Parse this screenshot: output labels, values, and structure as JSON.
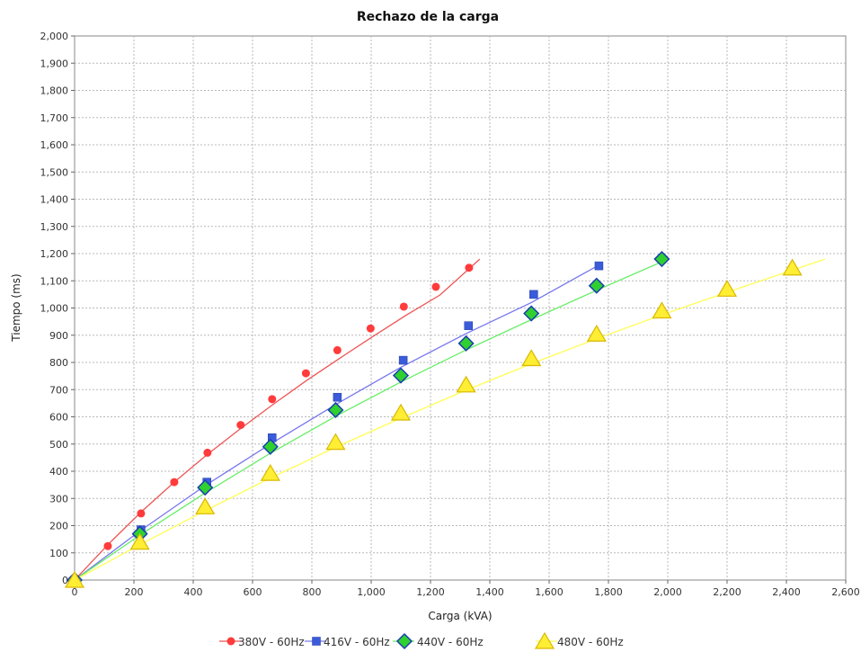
{
  "chart_data": {
    "type": "scatter",
    "title": "Rechazo de la carga",
    "xlabel": "Carga (kVA)",
    "ylabel": "Tiempo (ms)",
    "xlim": [
      0,
      2600
    ],
    "ylim": [
      0,
      2000
    ],
    "xticks": [
      0,
      200,
      400,
      600,
      800,
      1000,
      1200,
      1400,
      1600,
      1800,
      2000,
      2200,
      2400,
      2600
    ],
    "xtick_labels": [
      "0",
      "200",
      "400",
      "600",
      "800",
      "1,000",
      "1,200",
      "1,400",
      "1,600",
      "1,800",
      "2,000",
      "2,200",
      "2,400",
      "2,600"
    ],
    "yticks": [
      0,
      100,
      200,
      300,
      400,
      500,
      600,
      700,
      800,
      900,
      1000,
      1100,
      1200,
      1300,
      1400,
      1500,
      1600,
      1700,
      1800,
      1900,
      2000
    ],
    "ytick_labels": [
      "0",
      "100",
      "200",
      "300",
      "400",
      "500",
      "600",
      "700",
      "800",
      "900",
      "1,000",
      "1,100",
      "1,200",
      "1,300",
      "1,400",
      "1,500",
      "1,600",
      "1,700",
      "1,800",
      "1,900",
      "2,000"
    ],
    "grid": true,
    "legend_position": "bottom",
    "series": [
      {
        "name": "380V - 60Hz",
        "color": "#ff3b3b",
        "marker": "circle",
        "points": [
          [
            0,
            0
          ],
          [
            112,
            125
          ],
          [
            224,
            245
          ],
          [
            336,
            360
          ],
          [
            448,
            468
          ],
          [
            560,
            570
          ],
          [
            666,
            665
          ],
          [
            780,
            760
          ],
          [
            886,
            845
          ],
          [
            998,
            925
          ],
          [
            1110,
            1005
          ],
          [
            1218,
            1078
          ],
          [
            1330,
            1148
          ]
        ],
        "curve": [
          [
            0,
            0
          ],
          [
            112,
            130
          ],
          [
            224,
            250
          ],
          [
            336,
            360
          ],
          [
            448,
            462
          ],
          [
            560,
            557
          ],
          [
            672,
            648
          ],
          [
            784,
            735
          ],
          [
            896,
            817
          ],
          [
            1008,
            897
          ],
          [
            1120,
            975
          ],
          [
            1232,
            1048
          ],
          [
            1366,
            1180
          ]
        ]
      },
      {
        "name": "416V - 60Hz",
        "color": "#3b5bdb",
        "marker": "square",
        "points": [
          [
            0,
            0
          ],
          [
            224,
            185
          ],
          [
            446,
            360
          ],
          [
            666,
            523
          ],
          [
            886,
            672
          ],
          [
            1108,
            808
          ],
          [
            1328,
            935
          ],
          [
            1548,
            1050
          ],
          [
            1768,
            1155
          ]
        ],
        "curve": [
          [
            0,
            0
          ],
          [
            220,
            180
          ],
          [
            440,
            347
          ],
          [
            660,
            500
          ],
          [
            880,
            645
          ],
          [
            1100,
            782
          ],
          [
            1320,
            906
          ],
          [
            1540,
            1020
          ],
          [
            1780,
            1165
          ]
        ]
      },
      {
        "name": "440V - 60Hz",
        "color": "#22cc22",
        "marker": "diamond",
        "points": [
          [
            0,
            0
          ],
          [
            220,
            170
          ],
          [
            440,
            340
          ],
          [
            660,
            490
          ],
          [
            880,
            625
          ],
          [
            1100,
            752
          ],
          [
            1320,
            870
          ],
          [
            1540,
            980
          ],
          [
            1760,
            1082
          ],
          [
            1980,
            1180
          ]
        ],
        "curve": [
          [
            0,
            0
          ],
          [
            220,
            165
          ],
          [
            440,
            320
          ],
          [
            660,
            466
          ],
          [
            880,
            602
          ],
          [
            1100,
            728
          ],
          [
            1320,
            846
          ],
          [
            1540,
            957
          ],
          [
            1760,
            1065
          ],
          [
            1990,
            1175
          ]
        ]
      },
      {
        "name": "480V - 60Hz",
        "color": "#ffee33",
        "marker": "triangle",
        "points": [
          [
            0,
            0
          ],
          [
            220,
            140
          ],
          [
            440,
            270
          ],
          [
            660,
            393
          ],
          [
            880,
            507
          ],
          [
            1100,
            615
          ],
          [
            1320,
            718
          ],
          [
            1540,
            815
          ],
          [
            1760,
            905
          ],
          [
            1980,
            990
          ],
          [
            2200,
            1070
          ],
          [
            2420,
            1148
          ]
        ],
        "curve": [
          [
            0,
            0
          ],
          [
            220,
            130
          ],
          [
            440,
            255
          ],
          [
            660,
            375
          ],
          [
            880,
            488
          ],
          [
            1100,
            595
          ],
          [
            1320,
            698
          ],
          [
            1540,
            795
          ],
          [
            1760,
            887
          ],
          [
            1980,
            975
          ],
          [
            2200,
            1058
          ],
          [
            2530,
            1180
          ]
        ]
      }
    ]
  }
}
